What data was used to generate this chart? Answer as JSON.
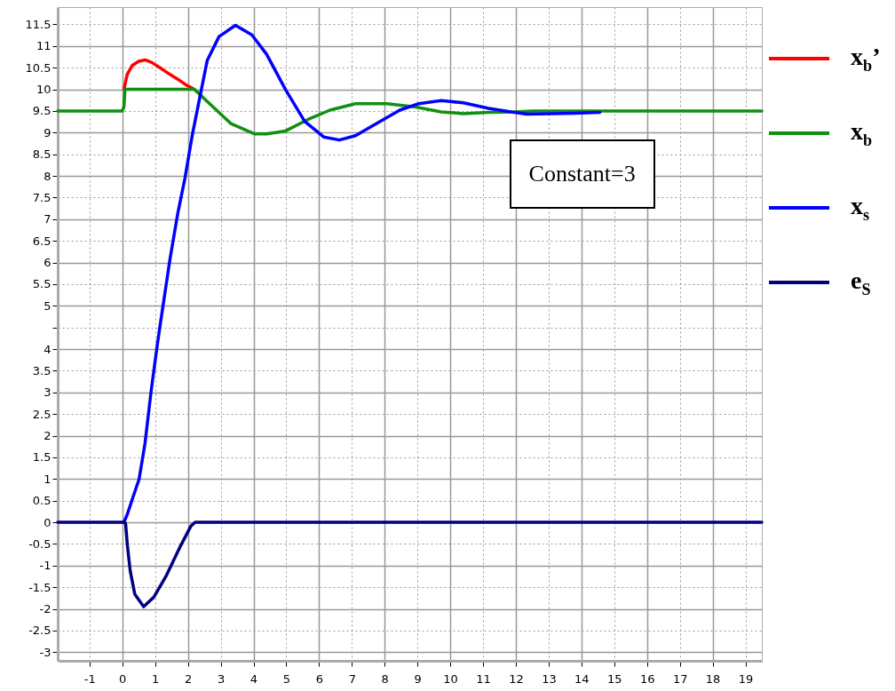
{
  "chart_data": {
    "type": "line",
    "xlim": [
      -1.97,
      19.5
    ],
    "ylim": [
      -3.2,
      11.9
    ],
    "xticks": [
      -1,
      0,
      1,
      2,
      3,
      4,
      5,
      6,
      7,
      8,
      9,
      10,
      11,
      12,
      13,
      14,
      15,
      16,
      17,
      18,
      19
    ],
    "yticks": [
      -3,
      -2.5,
      -2,
      -1.5,
      -1,
      -0.5,
      0,
      0.5,
      1,
      1.5,
      2,
      2.5,
      3,
      3.5,
      4,
      {
        "value": 4.5,
        "label": null
      },
      5,
      5.5,
      6,
      6.5,
      7,
      7.5,
      8,
      8.5,
      9,
      9.5,
      10,
      10.5,
      11,
      11.5
    ],
    "grid": true,
    "legend": "right",
    "line_style": "solid",
    "annotations": [
      "Constant=3"
    ],
    "series": [
      {
        "name": "x$_{b}$’",
        "color": "#ff0000",
        "x": [
          0.05,
          0.15,
          0.3,
          0.5,
          0.7,
          0.9,
          1.15,
          1.4,
          1.7,
          1.95,
          2.15
        ],
        "values": [
          10.0,
          10.35,
          10.55,
          10.65,
          10.68,
          10.62,
          10.5,
          10.37,
          10.23,
          10.1,
          10.02
        ]
      },
      {
        "name": "x$_{b}$",
        "color": "#109010",
        "x": [
          -1.97,
          0,
          0.05,
          0.08,
          0.5,
          1.0,
          1.5,
          2.2,
          2.59,
          3.31,
          4.04,
          4.4,
          4.98,
          5.65,
          6.33,
          7.11,
          8.07,
          8.95,
          9.72,
          10.4,
          11.17,
          11.95,
          12.5,
          19.5
        ],
        "values": [
          9.5,
          9.5,
          9.6,
          10.0,
          10.0,
          10.0,
          10.0,
          10.0,
          9.72,
          9.21,
          8.97,
          8.97,
          9.04,
          9.3,
          9.52,
          9.67,
          9.67,
          9.59,
          9.48,
          9.44,
          9.47,
          9.48,
          9.5,
          9.5
        ]
      },
      {
        "name": "x$_{s}$",
        "color": "#0000ff",
        "x": [
          0.05,
          0.15,
          0.33,
          0.51,
          0.69,
          0.88,
          1.06,
          1.15,
          1.46,
          1.69,
          1.91,
          2.14,
          2.32,
          2.59,
          2.95,
          3.45,
          3.95,
          4.4,
          4.98,
          5.56,
          6.14,
          6.62,
          7.11,
          7.79,
          8.46,
          9.04,
          9.72,
          10.4,
          11.17,
          11.85,
          12.34,
          13.78,
          14.56
        ],
        "values": [
          0,
          0.18,
          0.59,
          0.99,
          1.81,
          3.04,
          4.06,
          4.54,
          6.11,
          7.13,
          7.95,
          8.97,
          9.65,
          10.67,
          11.22,
          11.48,
          11.26,
          10.81,
          9.99,
          9.26,
          8.9,
          8.83,
          8.93,
          9.23,
          9.52,
          9.67,
          9.74,
          9.69,
          9.56,
          9.48,
          9.43,
          9.45,
          9.47
        ]
      },
      {
        "name": "e$_{S}$",
        "color": "#000080",
        "x": [
          -1.97,
          0.05,
          0.1,
          0.15,
          0.24,
          0.38,
          0.65,
          0.96,
          1.33,
          1.78,
          2.09,
          2.22,
          19.5
        ],
        "values": [
          0,
          0,
          -0.03,
          -0.5,
          -1.12,
          -1.66,
          -1.95,
          -1.73,
          -1.25,
          -0.54,
          -0.09,
          0,
          0
        ]
      }
    ]
  }
}
